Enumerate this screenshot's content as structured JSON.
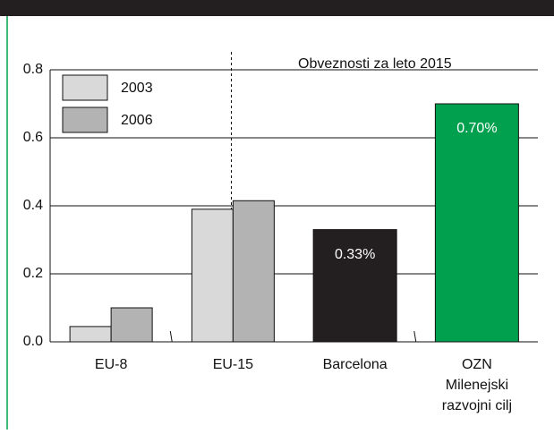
{
  "chart_data": {
    "type": "bar",
    "annotation": "Obveznosti za leto 2015",
    "categories": [
      "EU-8",
      "EU-15",
      "Barcelona",
      [
        "OZN",
        "Milenejski",
        "razvojni cilj"
      ]
    ],
    "series": [
      {
        "name": "2003",
        "color": "#d9d9d9",
        "values": [
          0.045,
          0.39,
          null,
          null
        ]
      },
      {
        "name": "2006",
        "color": "#b3b3b3",
        "values": [
          0.1,
          0.415,
          null,
          null
        ]
      },
      {
        "colors": [
          null,
          null,
          "#231f20",
          "#00a04f"
        ],
        "values": [
          null,
          null,
          0.33,
          0.7
        ],
        "value_labels": [
          null,
          null,
          "0.33%",
          "0.70%"
        ]
      }
    ],
    "ylim": [
      0,
      0.8
    ],
    "yticks": [
      {
        "value": 0,
        "label": "0.0"
      },
      0.2,
      0.4,
      0.6,
      0.8
    ],
    "grid": true,
    "legend": "top-left"
  }
}
